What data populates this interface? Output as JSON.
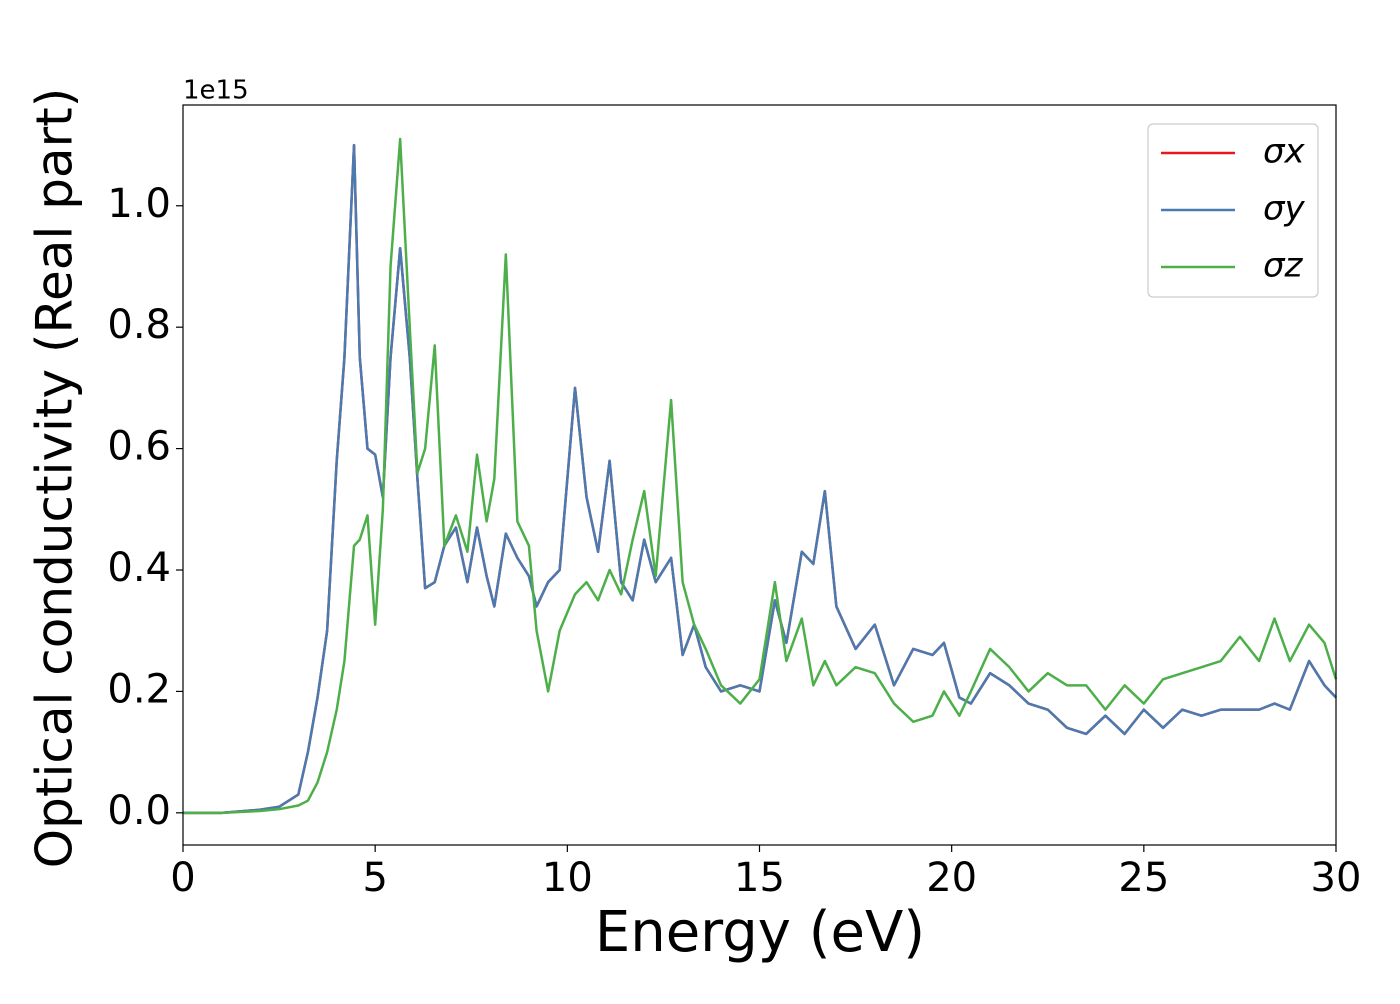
{
  "chart_data": {
    "type": "line",
    "xlabel": "Energy (eV)",
    "ylabel": "Optical conductivity (Real part)",
    "y_offset_label": "1e15",
    "x": [
      0,
      1,
      2,
      2.5,
      3,
      3.25,
      3.5,
      3.75,
      4,
      4.2,
      4.45,
      4.6,
      4.8,
      5,
      5.2,
      5.4,
      5.65,
      5.9,
      6.1,
      6.3,
      6.55,
      6.8,
      7.1,
      7.4,
      7.65,
      7.9,
      8.1,
      8.4,
      8.7,
      9,
      9.2,
      9.5,
      9.8,
      10.2,
      10.5,
      10.8,
      11.1,
      11.4,
      11.7,
      12,
      12.3,
      12.7,
      13,
      13.3,
      13.6,
      14,
      14.5,
      15,
      15.4,
      15.7,
      16.1,
      16.4,
      16.7,
      17,
      17.5,
      18,
      18.5,
      19,
      19.5,
      19.8,
      20.2,
      20.5,
      21,
      21.5,
      22,
      22.5,
      23,
      23.5,
      24,
      24.5,
      25,
      25.5,
      26,
      26.5,
      27,
      27.5,
      28,
      28.4,
      28.8,
      29.3,
      29.7,
      30
    ],
    "series": [
      {
        "name": "σx",
        "color": "#e41a1c",
        "values": [
          0,
          0,
          0.005,
          0.01,
          0.03,
          0.1,
          0.19,
          0.3,
          0.58,
          0.75,
          1.1,
          0.75,
          0.6,
          0.59,
          0.52,
          0.75,
          0.93,
          0.75,
          0.55,
          0.37,
          0.38,
          0.44,
          0.47,
          0.38,
          0.47,
          0.39,
          0.34,
          0.46,
          0.42,
          0.39,
          0.34,
          0.38,
          0.4,
          0.7,
          0.52,
          0.43,
          0.58,
          0.38,
          0.35,
          0.45,
          0.38,
          0.42,
          0.26,
          0.31,
          0.24,
          0.2,
          0.21,
          0.2,
          0.35,
          0.28,
          0.43,
          0.41,
          0.53,
          0.34,
          0.27,
          0.31,
          0.21,
          0.27,
          0.26,
          0.28,
          0.19,
          0.18,
          0.23,
          0.21,
          0.18,
          0.17,
          0.14,
          0.13,
          0.16,
          0.13,
          0.17,
          0.14,
          0.17,
          0.16,
          0.17,
          0.17,
          0.17,
          0.18,
          0.17,
          0.25,
          0.21,
          0.19
        ]
      },
      {
        "name": "σy",
        "color": "#4a7bb0",
        "values": [
          0,
          0,
          0.005,
          0.01,
          0.03,
          0.1,
          0.19,
          0.3,
          0.58,
          0.75,
          1.1,
          0.75,
          0.6,
          0.59,
          0.52,
          0.75,
          0.93,
          0.75,
          0.55,
          0.37,
          0.38,
          0.44,
          0.47,
          0.38,
          0.47,
          0.39,
          0.34,
          0.46,
          0.42,
          0.39,
          0.34,
          0.38,
          0.4,
          0.7,
          0.52,
          0.43,
          0.58,
          0.38,
          0.35,
          0.45,
          0.38,
          0.42,
          0.26,
          0.31,
          0.24,
          0.2,
          0.21,
          0.2,
          0.35,
          0.28,
          0.43,
          0.41,
          0.53,
          0.34,
          0.27,
          0.31,
          0.21,
          0.27,
          0.26,
          0.28,
          0.19,
          0.18,
          0.23,
          0.21,
          0.18,
          0.17,
          0.14,
          0.13,
          0.16,
          0.13,
          0.17,
          0.14,
          0.17,
          0.16,
          0.17,
          0.17,
          0.17,
          0.18,
          0.17,
          0.25,
          0.21,
          0.19
        ]
      },
      {
        "name": "σz",
        "color": "#4daf4a",
        "values": [
          0,
          0,
          0.003,
          0.006,
          0.012,
          0.02,
          0.05,
          0.1,
          0.17,
          0.25,
          0.44,
          0.45,
          0.49,
          0.31,
          0.5,
          0.9,
          1.11,
          0.8,
          0.56,
          0.6,
          0.77,
          0.44,
          0.49,
          0.43,
          0.59,
          0.48,
          0.55,
          0.92,
          0.48,
          0.44,
          0.3,
          0.2,
          0.3,
          0.36,
          0.38,
          0.35,
          0.4,
          0.36,
          0.45,
          0.53,
          0.39,
          0.68,
          0.38,
          0.31,
          0.27,
          0.21,
          0.18,
          0.22,
          0.38,
          0.25,
          0.32,
          0.21,
          0.25,
          0.21,
          0.24,
          0.23,
          0.18,
          0.15,
          0.16,
          0.2,
          0.16,
          0.2,
          0.27,
          0.24,
          0.2,
          0.23,
          0.21,
          0.21,
          0.17,
          0.21,
          0.18,
          0.22,
          0.23,
          0.24,
          0.25,
          0.29,
          0.25,
          0.32,
          0.25,
          0.31,
          0.28,
          0.22
        ]
      }
    ],
    "xlim": [
      0,
      30
    ],
    "ylim": [
      -0.053,
      1.166
    ],
    "xticks": [
      0,
      5,
      10,
      15,
      20,
      25,
      30
    ],
    "yticks": [
      {
        "value": 0,
        "label": "0.0"
      },
      0.2,
      0.4,
      0.6,
      0.8,
      {
        "value": 1,
        "label": "1.0"
      }
    ],
    "grid": false,
    "legend": "upper right"
  }
}
